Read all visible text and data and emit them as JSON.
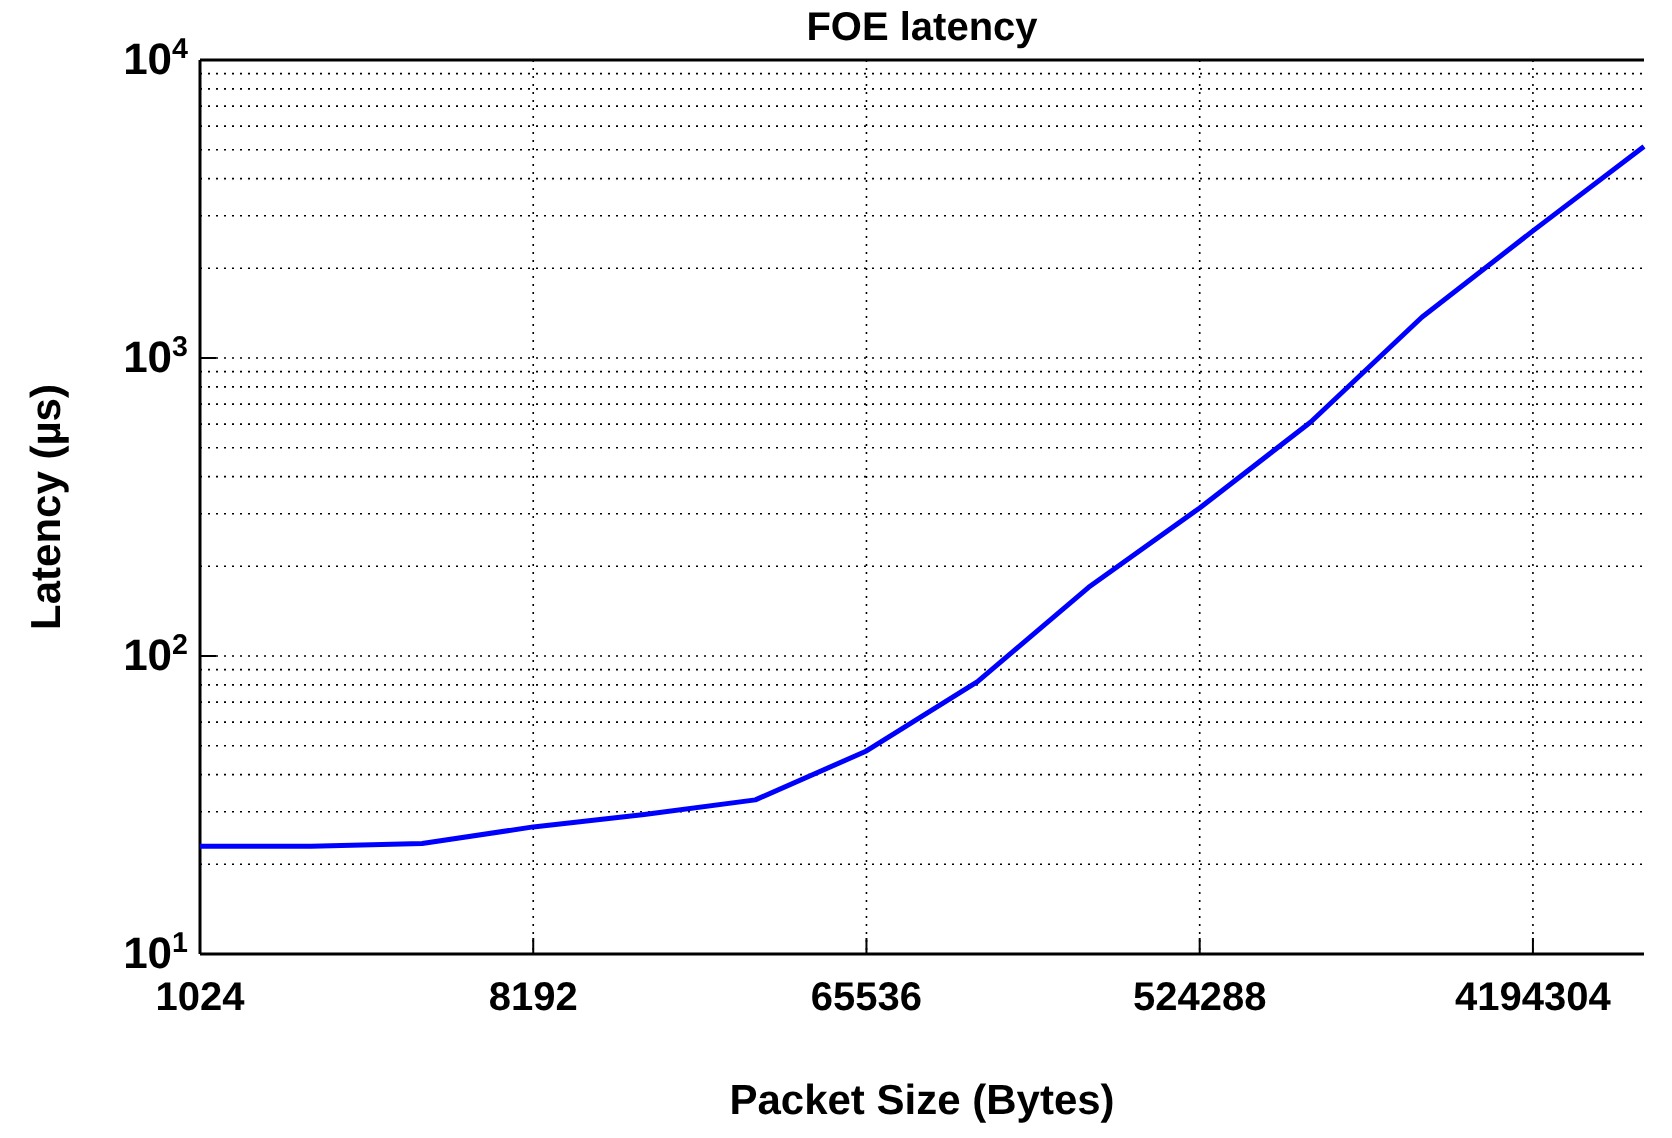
{
  "chart_data": {
    "type": "line",
    "title": "FOE latency",
    "xlabel": "Packet Size (Bytes)",
    "ylabel": "Latency (µs)",
    "log": "xy",
    "grid": true,
    "marker": "none",
    "line_style": "solid",
    "x": [
      1024,
      2048,
      4096,
      8192,
      16384,
      32768,
      65536,
      131072,
      262144,
      524288,
      1048576,
      2097152,
      4194304,
      8388608
    ],
    "series": [
      {
        "color": "#0000ff",
        "values": [
          23,
          23,
          23.5,
          26.7,
          29.4,
          32.9,
          48,
          82,
          170,
          314,
          610,
          1370,
          2670,
          5130
        ]
      }
    ],
    "xlim": [
      1024,
      8388608
    ],
    "xticks": [
      1024,
      8192,
      65536,
      524288,
      4194304
    ],
    "ylim": [
      10,
      10000
    ],
    "yticks": [
      {
        "value": 10,
        "label": "10$^{1}$"
      },
      {
        "value": 100,
        "label": "10$^{2}$"
      },
      {
        "value": 1000,
        "label": "10$^{3}$"
      },
      {
        "value": 10000,
        "label": "10$^{4}$"
      }
    ]
  }
}
